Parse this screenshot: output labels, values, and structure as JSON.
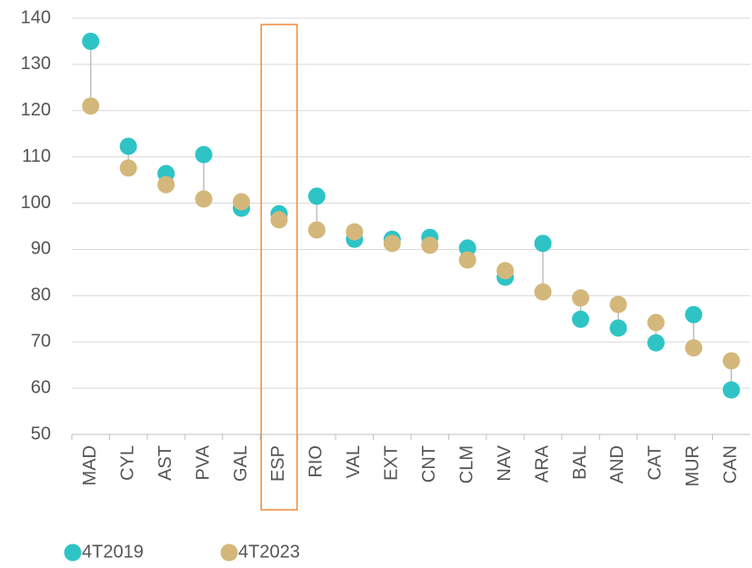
{
  "chart_data": {
    "type": "dot",
    "categories": [
      "MAD",
      "CYL",
      "AST",
      "PVA",
      "GAL",
      "ESP",
      "RIO",
      "VAL",
      "EXT",
      "CNT",
      "CLM",
      "NAV",
      "ARA",
      "BAL",
      "AND",
      "CAT",
      "MUR",
      "CAN"
    ],
    "series": [
      {
        "name": "4T2019",
        "color": "#2ec4c6",
        "values": [
          135,
          112.3,
          106.4,
          110.5,
          98.9,
          97.7,
          101.5,
          92.2,
          92.2,
          92.6,
          90.3,
          84,
          91.3,
          74.9,
          73,
          69.8,
          75.9,
          59.6
        ]
      },
      {
        "name": "4T2023",
        "color": "#d4b77a",
        "values": [
          121,
          107.6,
          104,
          100.9,
          100.3,
          96.4,
          94.2,
          93.8,
          91.3,
          90.9,
          87.7,
          85.4,
          80.8,
          79.5,
          78.1,
          74.2,
          68.7,
          65.9
        ]
      }
    ],
    "ylim": [
      50,
      140
    ],
    "yticks": [
      50,
      60,
      70,
      80,
      90,
      100,
      110,
      120,
      130,
      140
    ],
    "grid": true
  }
}
